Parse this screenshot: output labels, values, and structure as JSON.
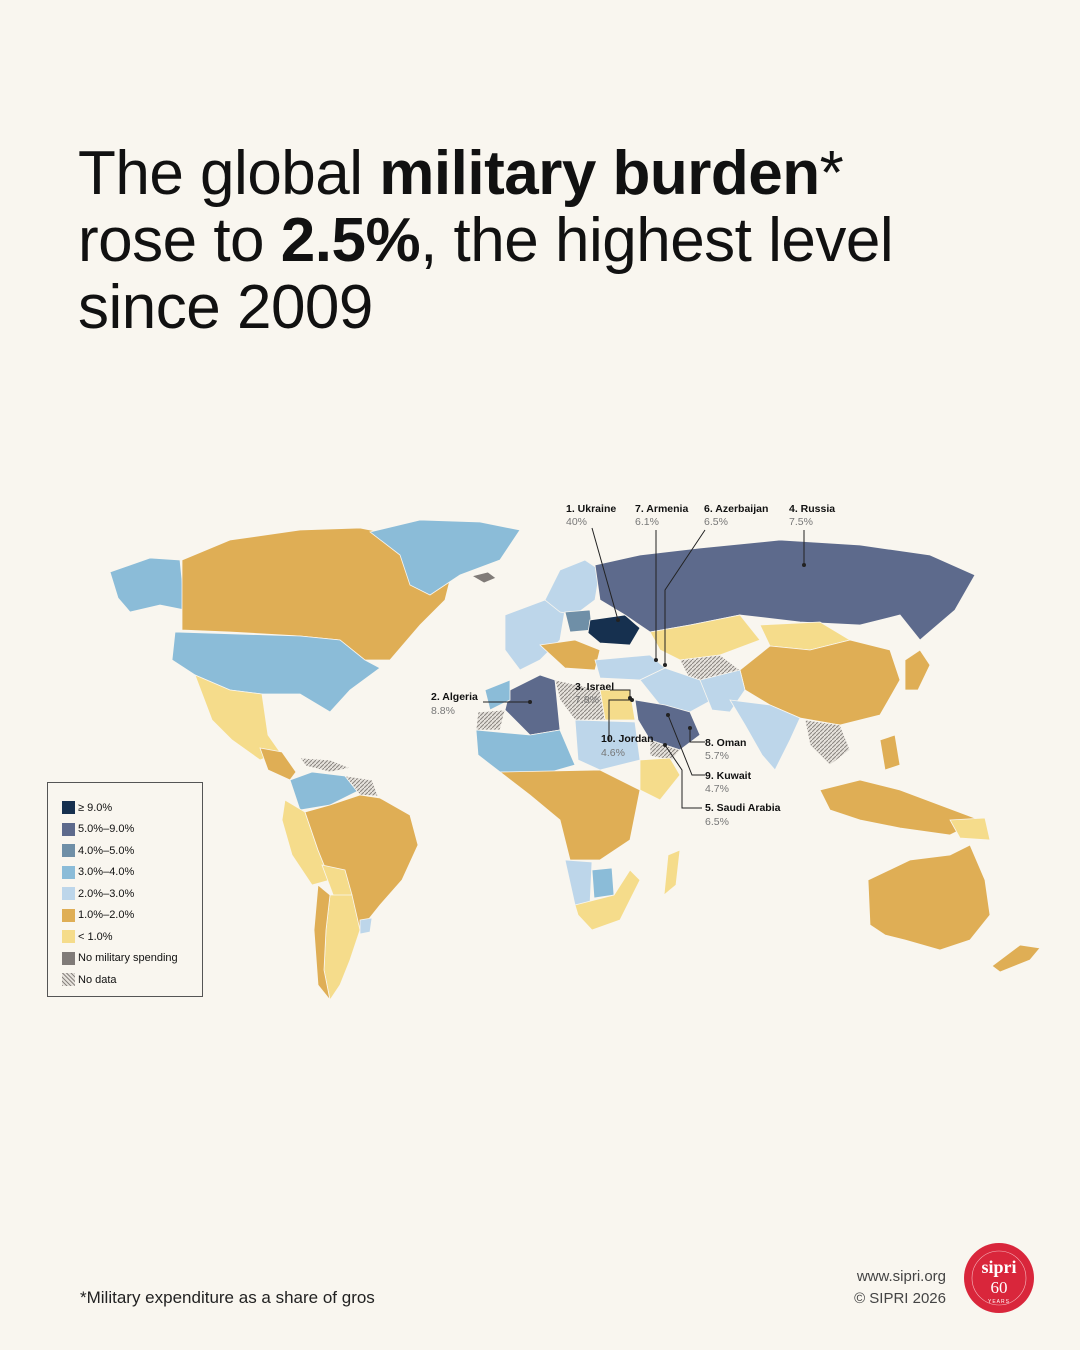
{
  "headline": {
    "part1": "The global ",
    "bold1": "military burden",
    "part2": "* rose to ",
    "bold2": "2.5%",
    "part3": ", the highest level since 2009"
  },
  "callouts": [
    {
      "name": "1. Ukraine",
      "value": "40%"
    },
    {
      "name": "7. Armenia",
      "value": "6.1%"
    },
    {
      "name": "6. Azerbaijan",
      "value": "6.5%"
    },
    {
      "name": "4. Russia",
      "value": "7.5%"
    },
    {
      "name": "2. Algeria",
      "value": "8.8%"
    },
    {
      "name": "3. Israel",
      "value": "7.8%"
    },
    {
      "name": "10. Jordan",
      "value": "4.6%"
    },
    {
      "name": "8. Oman",
      "value": "5.7%"
    },
    {
      "name": "9. Kuwait",
      "value": "4.7%"
    },
    {
      "name": "5. Saudi Arabia",
      "value": "6.5%"
    }
  ],
  "legend": [
    {
      "label": "≥ 9.0%",
      "color": "#16304f"
    },
    {
      "label": "5.0%–9.0%",
      "color": "#5d6a8c"
    },
    {
      "label": "4.0%–5.0%",
      "color": "#6f8fa7"
    },
    {
      "label": "3.0%–4.0%",
      "color": "#8bbcd8"
    },
    {
      "label": "2.0%–3.0%",
      "color": "#bdd6ea"
    },
    {
      "label": "1.0%–2.0%",
      "color": "#dfae55"
    },
    {
      "label": "< 1.0%",
      "color": "#f5dc8b"
    },
    {
      "label": "No military spending",
      "color": "#807b78"
    },
    {
      "label": "No data",
      "color": "hatch"
    }
  ],
  "footnote": "*Military expenditure as a share of gros",
  "credits": {
    "url": "www.sipri.org",
    "copyright": "© SIPRI 2026"
  },
  "logo": {
    "name": "sipri",
    "years": "60",
    "years_label": "YEARS",
    "motto": "Knowledge for a peaceful and secure world"
  }
}
